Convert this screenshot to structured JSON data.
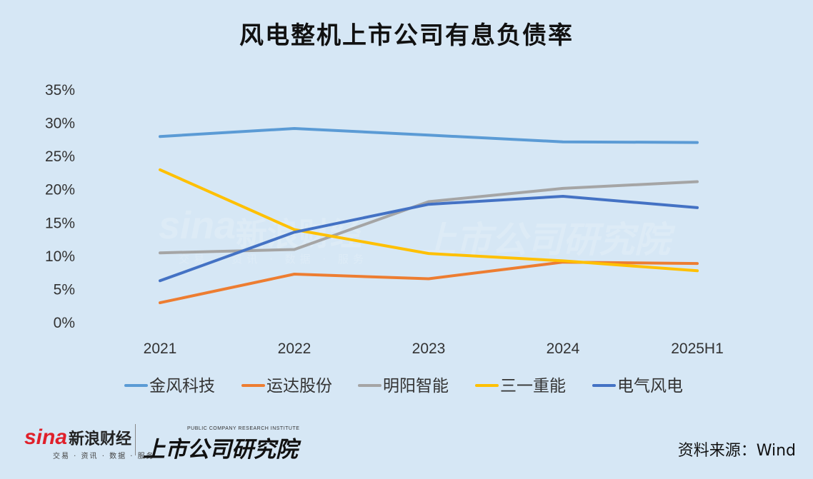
{
  "title": "风电整机上市公司有息负债率",
  "watermark": {
    "brand": "sina",
    "brand_cn": "新浪财经",
    "tagline": "交易 · 资讯 · 数据 · 服务",
    "institute_cn": "上市公司研究院",
    "institute_en": "PUBLIC COMPANY RESEARCH INSTITUTE"
  },
  "footer": {
    "brand": "sina",
    "brand_cn": "新浪财经",
    "tagline": "交易 · 资讯 · 数据 · 服务",
    "institute_en": "PUBLIC COMPANY RESEARCH INSTITUTE",
    "institute_cn": "上市公司研究院",
    "source": "资料来源：Wind"
  },
  "chart_data": {
    "type": "line",
    "title": "风电整机上市公司有息负债率",
    "categories": [
      "2021",
      "2022",
      "2023",
      "2024",
      "2025H1"
    ],
    "ylim": [
      0,
      35
    ],
    "yticks": [
      "0%",
      "5%",
      "10%",
      "15%",
      "20%",
      "25%",
      "30%",
      "35%"
    ],
    "xlabel": "",
    "ylabel": "",
    "grid": false,
    "legend_position": "bottom",
    "series": [
      {
        "name": "金风科技",
        "color": "#5b9bd5",
        "values": [
          28.0,
          29.2,
          28.2,
          27.2,
          27.1
        ]
      },
      {
        "name": "运达股份",
        "color": "#ed7d31",
        "values": [
          3.0,
          7.3,
          6.6,
          9.1,
          8.9
        ]
      },
      {
        "name": "明阳智能",
        "color": "#a5a5a5",
        "values": [
          10.5,
          11.0,
          18.2,
          20.2,
          21.2
        ]
      },
      {
        "name": "三一重能",
        "color": "#ffc000",
        "values": [
          23.0,
          14.0,
          10.4,
          9.3,
          7.8
        ]
      },
      {
        "name": "电气风电",
        "color": "#4472c4",
        "values": [
          6.3,
          13.6,
          17.8,
          19.0,
          17.3
        ]
      }
    ]
  }
}
